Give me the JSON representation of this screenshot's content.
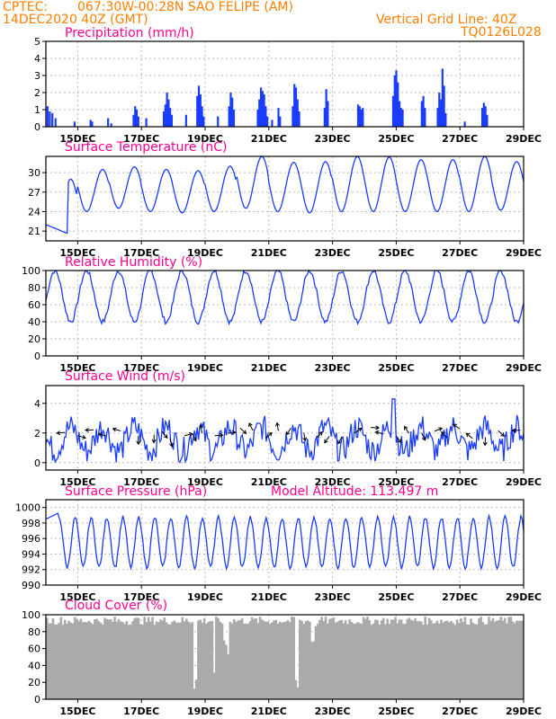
{
  "header": {
    "source": "CPTEC:",
    "location": "067:30W-00:28N  SAO FELIPE (AM)",
    "datetime": "14DEC2020 40Z (GMT)",
    "grid_note": "Vertical Grid Line: 40Z",
    "code": "TQ0126L028",
    "altitude_label": "Model Altitude: 113.497 m"
  },
  "colors": {
    "header_orange": "#ff7f00",
    "title_magenta": "#ff0090",
    "series_blue": "#1a3cff",
    "cloud_gray": "#aaaaaa",
    "grid_gray": "#bbbbbb"
  },
  "chart_data": [
    {
      "type": "bar",
      "title": "Precipitation (mm/h)",
      "ylim": [
        0,
        5
      ],
      "yticks": [
        "0",
        "1",
        "2",
        "3",
        "4",
        "5"
      ],
      "xticks": [
        "15DEC",
        "17DEC",
        "19DEC",
        "21DEC",
        "23DEC",
        "25DEC",
        "27DEC",
        "29DEC"
      ],
      "x_day_start": 14.0,
      "x_day_end": 29.0,
      "bars": [
        {
          "day": 14.05,
          "v": 1.2
        },
        {
          "day": 14.12,
          "v": 0.9
        },
        {
          "day": 14.2,
          "v": 0.8
        },
        {
          "day": 14.3,
          "v": 0.5
        },
        {
          "day": 14.9,
          "v": 0.3
        },
        {
          "day": 15.4,
          "v": 0.4
        },
        {
          "day": 15.45,
          "v": 0.3
        },
        {
          "day": 15.95,
          "v": 0.5
        },
        {
          "day": 16.05,
          "v": 0.2
        },
        {
          "day": 16.75,
          "v": 0.7
        },
        {
          "day": 16.8,
          "v": 1.2
        },
        {
          "day": 16.85,
          "v": 1.0
        },
        {
          "day": 16.9,
          "v": 0.6
        },
        {
          "day": 17.15,
          "v": 0.5
        },
        {
          "day": 17.7,
          "v": 0.9
        },
        {
          "day": 17.75,
          "v": 1.3
        },
        {
          "day": 17.8,
          "v": 2.0
        },
        {
          "day": 17.85,
          "v": 1.6
        },
        {
          "day": 17.9,
          "v": 1.1
        },
        {
          "day": 17.95,
          "v": 0.7
        },
        {
          "day": 18.4,
          "v": 0.7
        },
        {
          "day": 18.75,
          "v": 1.8
        },
        {
          "day": 18.8,
          "v": 2.4
        },
        {
          "day": 18.85,
          "v": 1.9
        },
        {
          "day": 18.9,
          "v": 1.2
        },
        {
          "day": 18.95,
          "v": 0.6
        },
        {
          "day": 19.4,
          "v": 0.6
        },
        {
          "day": 19.75,
          "v": 1.2
        },
        {
          "day": 19.8,
          "v": 2.0
        },
        {
          "day": 19.85,
          "v": 1.7
        },
        {
          "day": 19.9,
          "v": 1.0
        },
        {
          "day": 20.65,
          "v": 1.0
        },
        {
          "day": 20.7,
          "v": 1.6
        },
        {
          "day": 20.75,
          "v": 2.3
        },
        {
          "day": 20.8,
          "v": 2.1
        },
        {
          "day": 20.85,
          "v": 1.9
        },
        {
          "day": 20.9,
          "v": 1.2
        },
        {
          "day": 20.95,
          "v": 0.6
        },
        {
          "day": 21.1,
          "v": 0.4
        },
        {
          "day": 21.3,
          "v": 1.1
        },
        {
          "day": 21.35,
          "v": 0.6
        },
        {
          "day": 21.75,
          "v": 1.2
        },
        {
          "day": 21.8,
          "v": 2.5
        },
        {
          "day": 21.85,
          "v": 2.3
        },
        {
          "day": 21.9,
          "v": 1.6
        },
        {
          "day": 21.95,
          "v": 0.9
        },
        {
          "day": 22.75,
          "v": 1.1
        },
        {
          "day": 22.8,
          "v": 2.2
        },
        {
          "day": 22.85,
          "v": 1.5
        },
        {
          "day": 23.8,
          "v": 1.3
        },
        {
          "day": 23.85,
          "v": 1.2
        },
        {
          "day": 23.9,
          "v": 1.0
        },
        {
          "day": 23.95,
          "v": 1.1
        },
        {
          "day": 24.9,
          "v": 1.8
        },
        {
          "day": 24.95,
          "v": 3.0
        },
        {
          "day": 25.0,
          "v": 3.3
        },
        {
          "day": 25.05,
          "v": 2.6
        },
        {
          "day": 25.1,
          "v": 1.5
        },
        {
          "day": 25.15,
          "v": 1.1
        },
        {
          "day": 25.2,
          "v": 1.0
        },
        {
          "day": 25.8,
          "v": 1.5
        },
        {
          "day": 25.85,
          "v": 1.8
        },
        {
          "day": 25.9,
          "v": 1.1
        },
        {
          "day": 26.3,
          "v": 1.1
        },
        {
          "day": 26.35,
          "v": 2.0
        },
        {
          "day": 26.4,
          "v": 1.6
        },
        {
          "day": 26.45,
          "v": 3.4
        },
        {
          "day": 26.5,
          "v": 2.4
        },
        {
          "day": 26.55,
          "v": 0.8
        },
        {
          "day": 27.15,
          "v": 0.3
        },
        {
          "day": 27.7,
          "v": 1.1
        },
        {
          "day": 27.75,
          "v": 1.4
        },
        {
          "day": 27.8,
          "v": 1.2
        },
        {
          "day": 27.85,
          "v": 0.7
        }
      ]
    },
    {
      "type": "line",
      "title": "Surface Temperature (nC)",
      "ylim": [
        19.5,
        32.5
      ],
      "yticks": [
        "21",
        "24",
        "27",
        "30"
      ],
      "ytick_values": [
        21,
        24,
        27,
        30
      ],
      "xticks": [
        "15DEC",
        "17DEC",
        "19DEC",
        "21DEC",
        "23DEC",
        "25DEC",
        "27DEC",
        "29DEC"
      ],
      "x_day_start": 14.0,
      "x_day_end": 29.0,
      "amplitude": [
        8.0,
        6.5,
        6.4,
        6.5,
        6.5,
        7.0,
        8.0,
        7.6,
        7.9,
        8.5,
        8.4,
        8.0,
        8.0,
        8.5,
        7.5
      ],
      "base": [
        21.0,
        24.0,
        24.5,
        24.0,
        23.8,
        24.0,
        24.5,
        24.0,
        23.8,
        24.0,
        24.0,
        24.0,
        24.0,
        24.0,
        24.2
      ]
    },
    {
      "type": "line",
      "title": "Relative Humidity (%)",
      "ylim": [
        0,
        100
      ],
      "yticks": [
        "0",
        "20",
        "40",
        "60",
        "80",
        "100"
      ],
      "ytick_values": [
        0,
        20,
        40,
        60,
        80,
        100
      ],
      "xticks": [
        "15DEC",
        "17DEC",
        "19DEC",
        "21DEC",
        "23DEC",
        "25DEC",
        "27DEC",
        "29DEC"
      ],
      "x_day_start": 14.0,
      "x_day_end": 29.0
    },
    {
      "type": "line",
      "title": "Surface Wind (m/s)",
      "ylim": [
        -0.5,
        5.2
      ],
      "yticks": [
        "0",
        "2",
        "4"
      ],
      "ytick_values": [
        0,
        2,
        4
      ],
      "xticks": [
        "15DEC",
        "17DEC",
        "19DEC",
        "21DEC",
        "23DEC",
        "25DEC",
        "27DEC",
        "29DEC"
      ],
      "x_day_start": 14.0,
      "x_day_end": 29.0
    },
    {
      "type": "line",
      "title": "Surface Pressure (hPa)",
      "ylim": [
        990,
        1001
      ],
      "yticks": [
        "990",
        "992",
        "994",
        "996",
        "998",
        "1000"
      ],
      "ytick_values": [
        990,
        992,
        994,
        996,
        998,
        1000
      ],
      "xticks": [
        "15DEC",
        "17DEC",
        "19DEC",
        "21DEC",
        "23DEC",
        "25DEC",
        "27DEC",
        "29DEC"
      ],
      "x_day_start": 14.0,
      "x_day_end": 29.0
    },
    {
      "type": "area",
      "title": "Cloud Cover (%)",
      "ylim": [
        0,
        100
      ],
      "yticks": [
        "0",
        "20",
        "40",
        "60",
        "80",
        "100"
      ],
      "ytick_values": [
        0,
        20,
        40,
        60,
        80,
        100
      ],
      "xticks": [
        "15DEC",
        "17DEC",
        "19DEC",
        "21DEC",
        "23DEC",
        "25DEC",
        "27DEC",
        "29DEC"
      ],
      "x_day_start": 14.0,
      "x_day_end": 29.0
    }
  ]
}
